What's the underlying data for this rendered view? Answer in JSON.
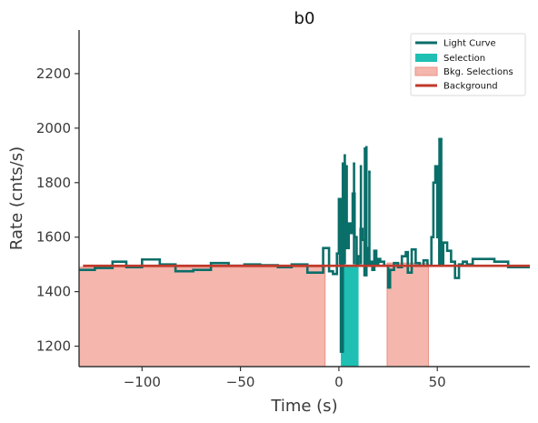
{
  "colors": {
    "light_curve": "#0a6e69",
    "selection": "#1fbfb4",
    "bkg_selection_fill": "#f4b6ad",
    "bkg_selection_edge": "#ec9184",
    "background": "#c0392b",
    "axis": "#333333"
  },
  "chart_data": {
    "type": "line",
    "title": "b0",
    "xlabel": "Time (s)",
    "ylabel": "Rate (cnts/s)",
    "xlim": [
      -132,
      97
    ],
    "ylim": [
      1125,
      2360
    ],
    "xticks": [
      -100,
      -50,
      0,
      50
    ],
    "xtick_labels": [
      "−100",
      "−50",
      "0",
      "50"
    ],
    "yticks": [
      1200,
      1400,
      1600,
      1800,
      2000,
      2200
    ],
    "ytick_labels": [
      "1200",
      "1400",
      "1600",
      "1800",
      "2000",
      "2200"
    ],
    "grid": false,
    "legend_position": "top-right",
    "legend": [
      "Light Curve",
      "Selection",
      "Bkg. Selections",
      "Background"
    ],
    "light_curve_step": {
      "x": [
        -132,
        -124,
        -115,
        -108,
        -100,
        -91,
        -83,
        -74,
        -65,
        -56,
        -48,
        -40,
        -31,
        -24,
        -16,
        -8,
        -5,
        -3,
        -1,
        0,
        1,
        2,
        3,
        4,
        5,
        6,
        7,
        8,
        9,
        10,
        11,
        12,
        13,
        14,
        15,
        16,
        17,
        18,
        19,
        20,
        21,
        23,
        25,
        26,
        28,
        30,
        32,
        34,
        35,
        37,
        39,
        41,
        43,
        45,
        47,
        48,
        49,
        50,
        51,
        53,
        55,
        57,
        59,
        61,
        63,
        65,
        68,
        72,
        79,
        86,
        94,
        97
      ],
      "y": [
        1480,
        1487,
        1510,
        1490,
        1518,
        1500,
        1475,
        1480,
        1505,
        1495,
        1500,
        1497,
        1490,
        1500,
        1470,
        1560,
        1475,
        1465,
        1540,
        1740,
        1180,
        1870,
        1860,
        1560,
        1650,
        1615,
        1760,
        1600,
        1500,
        1530,
        1630,
        1590,
        1460,
        1560,
        1500,
        1510,
        1480,
        1550,
        1500,
        1520,
        1510,
        1495,
        1415,
        1480,
        1505,
        1490,
        1530,
        1545,
        1470,
        1555,
        1505,
        1495,
        1515,
        1495,
        1600,
        1800,
        1860,
        1600,
        1500,
        1580,
        1550,
        1510,
        1450,
        1500,
        1510,
        1500,
        1520,
        1520,
        1510,
        1490,
        1490,
        1490
      ]
    },
    "light_curve_spikes": [
      {
        "x": 0.5,
        "y": 1660,
        "color": "selection"
      },
      {
        "x": 1.6,
        "y": 1180,
        "color": "selection"
      },
      {
        "x": 7.7,
        "y": 1870,
        "color": "selection"
      },
      {
        "x": 11.2,
        "y": 1860,
        "color": "light_curve"
      },
      {
        "x": 13.2,
        "y": 1925,
        "color": "light_curve"
      },
      {
        "x": 14.0,
        "y": 1930,
        "color": "light_curve"
      },
      {
        "x": 15.5,
        "y": 1840,
        "color": "light_curve"
      },
      {
        "x": 51.1,
        "y": 1960,
        "color": "light_curve"
      },
      {
        "x": 52.0,
        "y": 1960,
        "color": "light_curve"
      },
      {
        "x": 3.0,
        "y": 1900,
        "color": "light_curve"
      }
    ],
    "selection_interval": [
      1,
      10
    ],
    "bkg_selections": [
      {
        "x": [
          -132,
          -7
        ],
        "y_top": 1490
      },
      {
        "x": [
          24.5,
          45.5
        ],
        "y_top": 1505
      }
    ],
    "background_level": 1495
  }
}
